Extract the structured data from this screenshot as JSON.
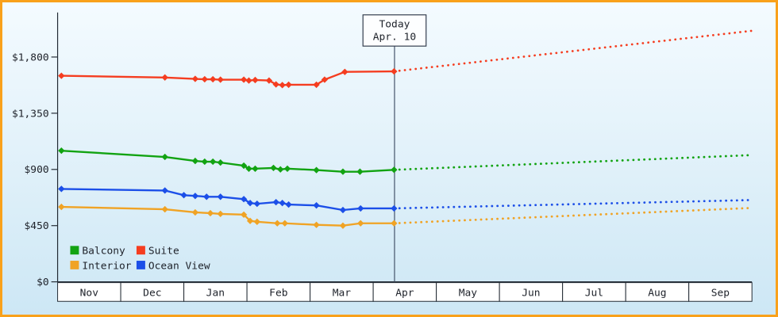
{
  "frame": {
    "border_color": "#f9a11b",
    "bg_top": "#f4fbff",
    "bg_bottom": "#cde7f5"
  },
  "chart_data": {
    "type": "line",
    "title": "",
    "x_axis": {
      "categories": [
        "Nov",
        "Dec",
        "Jan",
        "Feb",
        "Mar",
        "Apr",
        "May",
        "Jun",
        "Jul",
        "Aug",
        "Sep"
      ],
      "x_encoding": "months from Nov (0 = Nov start, 1 = Dec start, ...)"
    },
    "y_axis": {
      "tick_labels": [
        "$1,800",
        "$1,350",
        "$900",
        "$450",
        "$0"
      ],
      "tick_values": [
        1800,
        1350,
        900,
        450,
        0
      ],
      "ylim": [
        0,
        2150
      ],
      "currency": "$"
    },
    "grid": "off",
    "legend_position": "bottom-left inside plot",
    "today": {
      "line1": "Today",
      "line2": "Apr. 10",
      "month_position": 5.33
    },
    "legend": [
      {
        "label": "Balcony",
        "color": "#12a312"
      },
      {
        "label": "Suite",
        "color": "#f53d20"
      },
      {
        "label": "Interior",
        "color": "#f0a325"
      },
      {
        "label": "Ocean View",
        "color": "#1c4fe8"
      }
    ],
    "series": [
      {
        "name": "Suite",
        "color": "#f53d20",
        "history": [
          [
            0.06,
            1650
          ],
          [
            1.7,
            1636
          ],
          [
            2.18,
            1625
          ],
          [
            2.33,
            1622
          ],
          [
            2.46,
            1622
          ],
          [
            2.58,
            1619
          ],
          [
            2.95,
            1619
          ],
          [
            3.03,
            1612
          ],
          [
            3.13,
            1616
          ],
          [
            3.35,
            1612
          ],
          [
            3.46,
            1581
          ],
          [
            3.56,
            1575
          ],
          [
            3.66,
            1578
          ],
          [
            4.1,
            1578
          ],
          [
            4.23,
            1619
          ],
          [
            4.55,
            1681
          ],
          [
            5.33,
            1685
          ]
        ],
        "forecast_end": [
          11,
          2010
        ]
      },
      {
        "name": "Balcony",
        "color": "#12a312",
        "history": [
          [
            0.06,
            1050
          ],
          [
            1.7,
            1000
          ],
          [
            2.18,
            968
          ],
          [
            2.33,
            962
          ],
          [
            2.46,
            962
          ],
          [
            2.58,
            955
          ],
          [
            2.95,
            930
          ],
          [
            3.03,
            906
          ],
          [
            3.13,
            906
          ],
          [
            3.42,
            912
          ],
          [
            3.53,
            900
          ],
          [
            3.64,
            906
          ],
          [
            4.1,
            895
          ],
          [
            4.52,
            882
          ],
          [
            4.79,
            882
          ],
          [
            5.33,
            897
          ]
        ],
        "forecast_end": [
          11,
          1015
        ]
      },
      {
        "name": "Ocean View",
        "color": "#1c4fe8",
        "history": [
          [
            0.06,
            744
          ],
          [
            1.7,
            731
          ],
          [
            2.0,
            694
          ],
          [
            2.18,
            688
          ],
          [
            2.36,
            681
          ],
          [
            2.58,
            681
          ],
          [
            2.95,
            662
          ],
          [
            3.05,
            631
          ],
          [
            3.16,
            625
          ],
          [
            3.46,
            638
          ],
          [
            3.56,
            631
          ],
          [
            3.66,
            619
          ],
          [
            4.1,
            612
          ],
          [
            4.52,
            575
          ],
          [
            4.8,
            588
          ],
          [
            5.33,
            588
          ]
        ],
        "forecast_end": [
          11,
          655
        ]
      },
      {
        "name": "Interior",
        "color": "#f0a325",
        "history": [
          [
            0.06,
            600
          ],
          [
            1.7,
            581
          ],
          [
            2.18,
            556
          ],
          [
            2.42,
            550
          ],
          [
            2.58,
            544
          ],
          [
            2.95,
            538
          ],
          [
            3.05,
            488
          ],
          [
            3.16,
            481
          ],
          [
            3.48,
            469
          ],
          [
            3.6,
            469
          ],
          [
            4.1,
            456
          ],
          [
            4.52,
            450
          ],
          [
            4.8,
            469
          ],
          [
            5.33,
            469
          ]
        ],
        "forecast_end": [
          11,
          592
        ]
      }
    ]
  }
}
